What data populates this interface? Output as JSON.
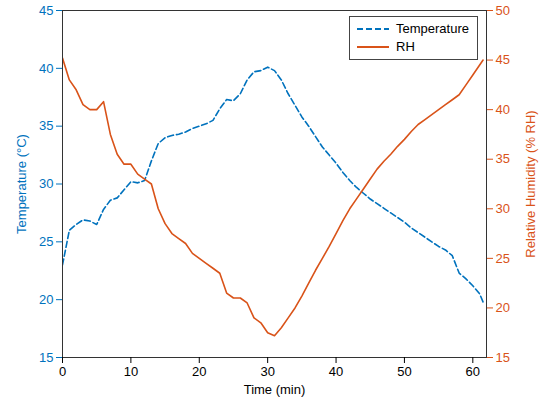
{
  "chart_data": {
    "type": "line",
    "xlabel": "Time (min)",
    "ylabel": "Temperature (°C)",
    "y2label": "Relative Humidity (% RH)",
    "x": [
      0,
      1,
      2,
      3,
      4,
      5,
      6,
      7,
      8,
      9,
      10,
      11,
      12,
      13,
      14,
      15,
      16,
      17,
      18,
      19,
      20,
      21,
      22,
      23,
      24,
      25,
      26,
      27,
      28,
      29,
      30,
      31,
      32,
      33,
      34,
      35,
      36,
      37,
      38,
      39,
      40,
      41,
      42,
      43,
      44,
      45,
      46,
      47,
      48,
      49,
      50,
      51,
      52,
      53,
      54,
      55,
      56,
      57,
      58,
      59,
      60,
      61,
      61.5
    ],
    "xlim": [
      0,
      62
    ],
    "xticks": [
      0,
      10,
      20,
      30,
      40,
      50,
      60
    ],
    "ylim": [
      15,
      45
    ],
    "yticks": [
      15,
      20,
      25,
      30,
      35,
      40,
      45
    ],
    "y2lim": [
      15,
      50
    ],
    "y2ticks": [
      15,
      20,
      25,
      30,
      35,
      40,
      45,
      50
    ],
    "grid": false,
    "legend": "top-right",
    "series": [
      {
        "name": "Temperature",
        "color": "#0072BD",
        "line_style": "dashed",
        "axis": "y",
        "values": [
          23,
          26,
          26.5,
          26.9,
          26.8,
          26.5,
          27.8,
          28.6,
          28.8,
          29.5,
          30.2,
          30.1,
          30.3,
          32,
          33.5,
          34,
          34.2,
          34.3,
          34.5,
          34.8,
          35,
          35.2,
          35.5,
          36.5,
          37.3,
          37.2,
          37.8,
          39,
          39.7,
          39.8,
          40.1,
          39.8,
          39,
          37.8,
          36.8,
          35.8,
          35,
          34.1,
          33.2,
          32.5,
          31.8,
          31,
          30.3,
          29.7,
          29.2,
          28.7,
          28.3,
          27.9,
          27.5,
          27.1,
          26.7,
          26.2,
          25.8,
          25.4,
          25,
          24.6,
          24.3,
          23.8,
          22.3,
          21.8,
          21.2,
          20.5,
          19.8
        ]
      },
      {
        "name": "RH",
        "color": "#D95319",
        "line_style": "solid",
        "axis": "y2",
        "values": [
          45.2,
          43,
          42,
          40.5,
          40,
          40,
          40.8,
          37.5,
          35.5,
          34.5,
          34.5,
          33.5,
          33,
          32.5,
          30,
          28.5,
          27.5,
          27,
          26.5,
          25.5,
          25,
          24.5,
          24,
          23.5,
          21.5,
          21,
          21,
          20.5,
          19,
          18.5,
          17.5,
          17.2,
          18,
          19,
          20,
          21.2,
          22.5,
          23.8,
          25,
          26.2,
          27.5,
          28.8,
          30,
          31,
          32,
          33,
          34,
          34.8,
          35.5,
          36.3,
          37,
          37.8,
          38.5,
          39,
          39.5,
          40,
          40.5,
          41,
          41.5,
          42.5,
          43.5,
          44.5,
          45
        ]
      }
    ]
  }
}
